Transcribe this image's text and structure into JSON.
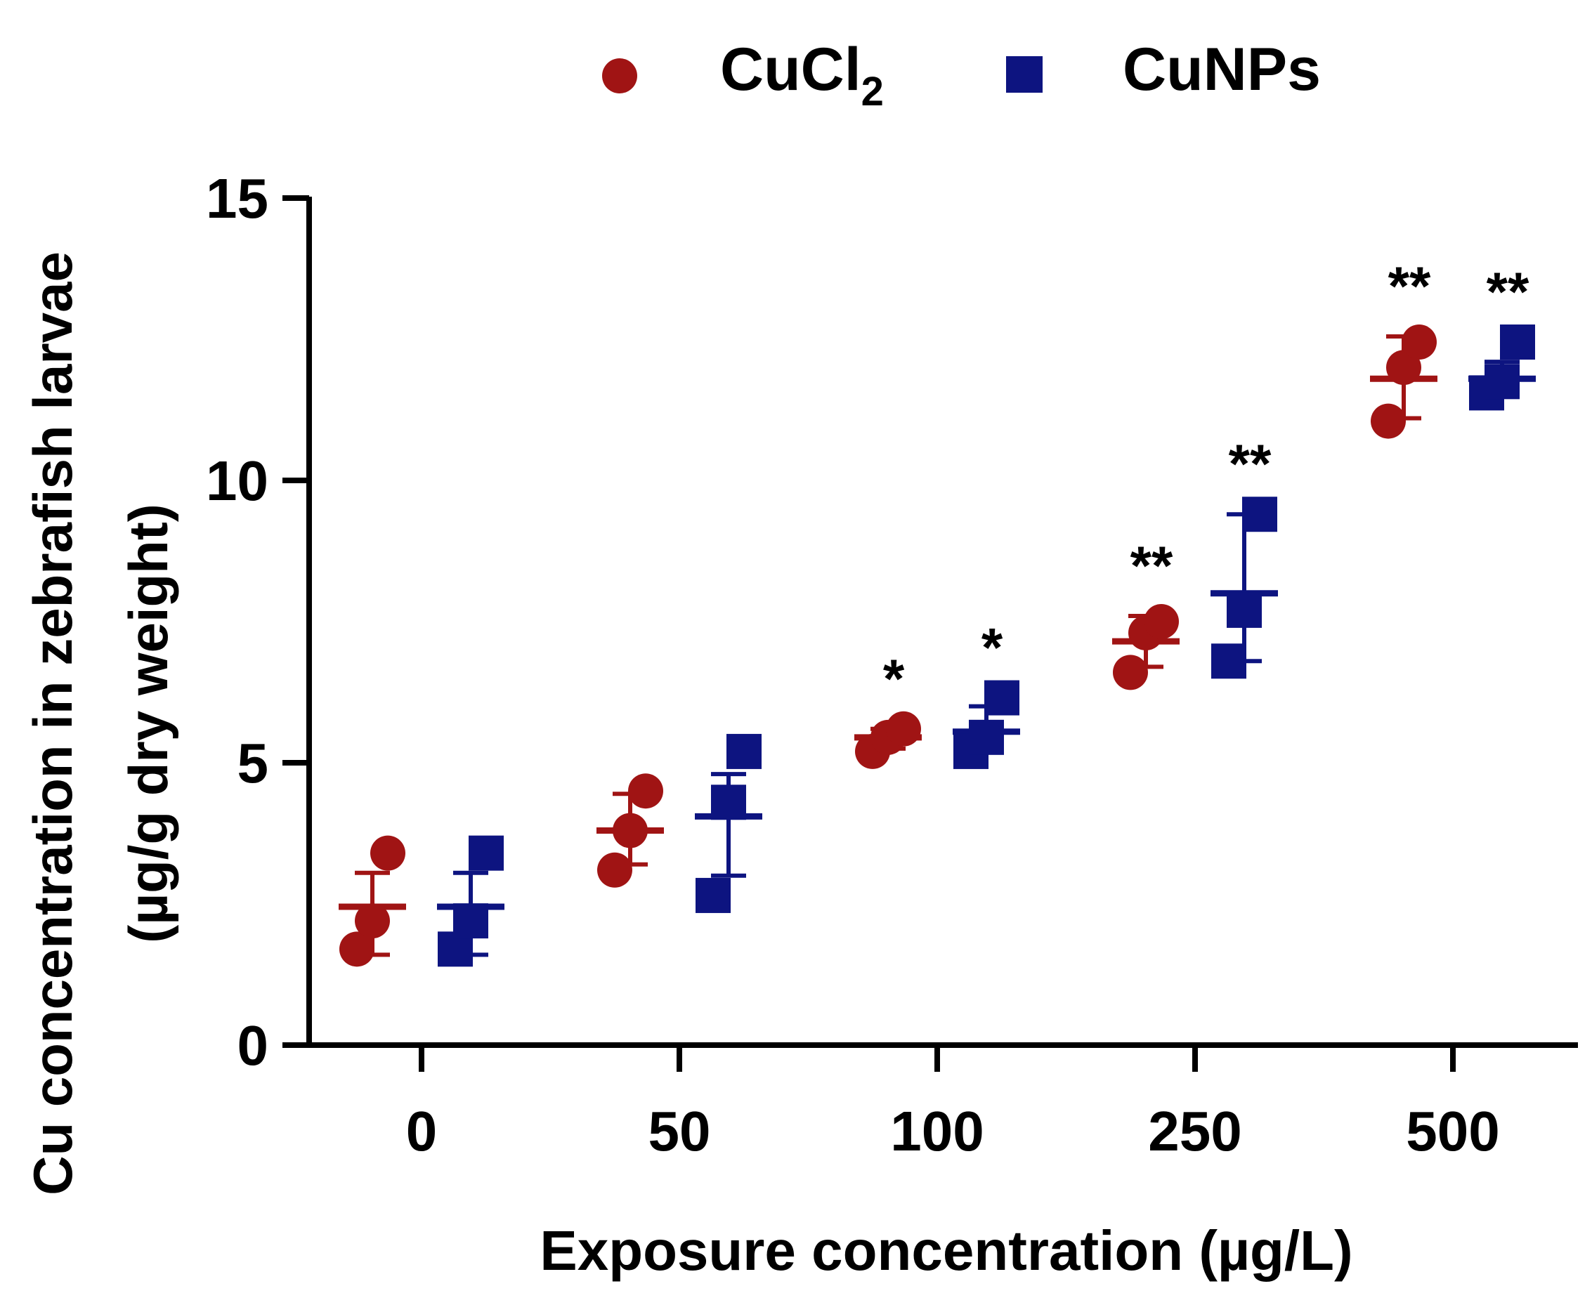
{
  "chart_data": {
    "type": "scatter",
    "title": "",
    "xlabel": "Exposure concentration (µg/L)",
    "ylabel": [
      "Cu concentration in zebrafish larvae",
      "(µg/g dry weight)"
    ],
    "categories": [
      "0",
      "50",
      "100",
      "250",
      "500"
    ],
    "ylim": [
      0,
      15
    ],
    "yticks": [
      0,
      5,
      10,
      15
    ],
    "legend_position": "top-center",
    "series": [
      {
        "name": "CuCl2",
        "legend_text": "CuCl",
        "legend_subscript": "2",
        "marker": "circle",
        "color": "#A01414",
        "groups": [
          {
            "points": [
              1.7,
              2.2,
              3.4
            ],
            "mean": 2.45,
            "sd_upper": 3.05,
            "sd_lower": 1.6,
            "sig": ""
          },
          {
            "points": [
              3.1,
              3.8,
              4.5
            ],
            "mean": 3.8,
            "sd_upper": 4.45,
            "sd_lower": 3.2,
            "sig": ""
          },
          {
            "points": [
              5.2,
              5.45,
              5.6
            ],
            "mean": 5.45,
            "sd_upper": 5.6,
            "sd_lower": 5.25,
            "sig": "*"
          },
          {
            "points": [
              6.6,
              7.3,
              7.5
            ],
            "mean": 7.15,
            "sd_upper": 7.6,
            "sd_lower": 6.7,
            "sig": "**"
          },
          {
            "points": [
              11.05,
              12.0,
              12.45
            ],
            "mean": 11.8,
            "sd_upper": 12.55,
            "sd_lower": 11.1,
            "sig": "**"
          }
        ]
      },
      {
        "name": "CuNPs",
        "legend_text": "CuNPs",
        "legend_subscript": "",
        "marker": "square",
        "color": "#0D1480",
        "groups": [
          {
            "points": [
              1.7,
              2.2,
              3.4
            ],
            "mean": 2.45,
            "sd_upper": 3.05,
            "sd_lower": 1.6,
            "sig": ""
          },
          {
            "points": [
              2.65,
              4.3,
              5.2
            ],
            "mean": 4.05,
            "sd_upper": 4.8,
            "sd_lower": 3.0,
            "sig": ""
          },
          {
            "points": [
              5.2,
              5.45,
              6.15
            ],
            "mean": 5.55,
            "sd_upper": 6.0,
            "sd_lower": 5.2,
            "sig": "*"
          },
          {
            "points": [
              6.8,
              7.7,
              9.4
            ],
            "mean": 8.0,
            "sd_upper": 9.4,
            "sd_lower": 6.8,
            "sig": "**"
          },
          {
            "points": [
              11.55,
              11.75,
              12.45
            ],
            "mean": 11.8,
            "sd_upper": 12.1,
            "sd_lower": 11.5,
            "sig": "**"
          }
        ]
      }
    ]
  }
}
